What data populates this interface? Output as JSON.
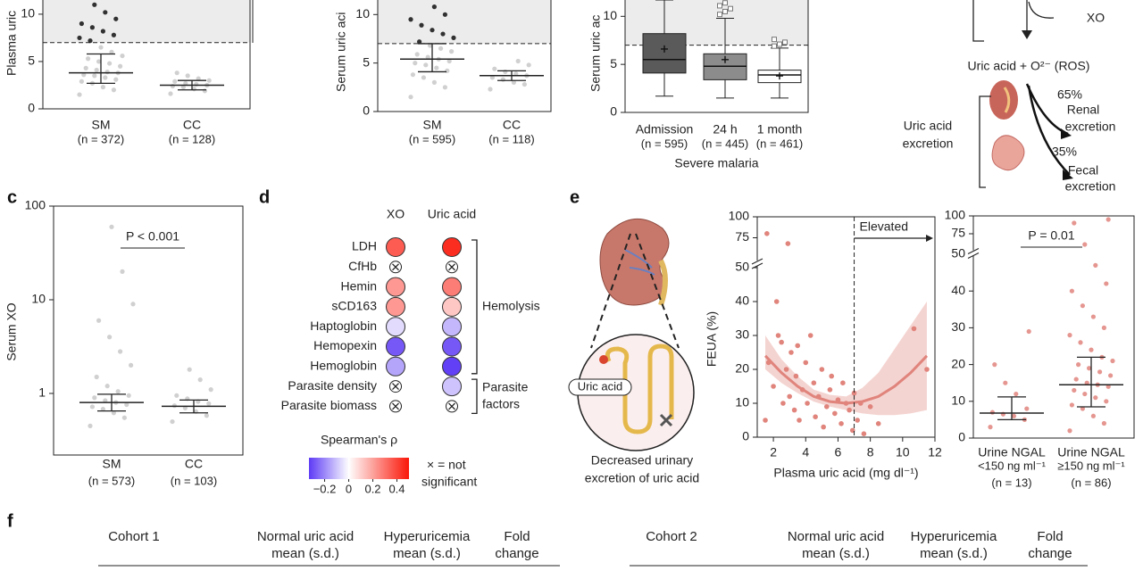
{
  "panel_labels": [
    "c",
    "d",
    "e",
    "f"
  ],
  "chart_data": [
    {
      "type": "strip",
      "ylabel": "Plasma uric",
      "ylim": [
        0,
        11.5
      ],
      "yticks": [
        0,
        5,
        10
      ],
      "threshold": 7,
      "color": "#c8c8c8",
      "threshold_color": "#111111",
      "categories": [
        "SM",
        "CC"
      ],
      "n_labels": [
        "(n = 372)",
        "(n = 128)"
      ],
      "median": [
        3.8,
        2.5
      ],
      "lower": [
        2.7,
        2.0
      ],
      "upper": [
        5.8,
        3.0
      ],
      "points": [
        [
          1.5,
          2,
          2.3,
          2.7,
          2.9,
          3.1,
          3.3,
          3.5,
          3.6,
          3.8,
          3.9,
          4.1,
          4.3,
          4.5,
          4.8,
          5,
          5.3,
          5.6,
          6,
          6.5,
          7.2,
          7.5,
          7.8,
          8.2,
          8.6,
          9,
          9.5,
          10.2,
          11
        ],
        [
          1.6,
          1.9,
          2.1,
          2.3,
          2.4,
          2.5,
          2.6,
          2.7,
          2.9,
          3,
          3.2,
          3.5,
          3.8
        ]
      ]
    },
    {
      "type": "strip",
      "ylabel": "Serum uric aci",
      "ylim": [
        0,
        11.5
      ],
      "yticks": [
        0,
        5,
        10
      ],
      "threshold": 7,
      "color": "#c8c8c8",
      "threshold_color": "#111111",
      "categories": [
        "SM",
        "CC"
      ],
      "n_labels": [
        "(n = 595)",
        "(n = 118)"
      ],
      "median": [
        5.4,
        3.7
      ],
      "lower": [
        4.1,
        3.2
      ],
      "upper": [
        7.0,
        4.2
      ],
      "points": [
        [
          1.5,
          2.5,
          3,
          3.5,
          3.8,
          4.2,
          4.5,
          4.8,
          5,
          5.2,
          5.4,
          5.6,
          5.9,
          6.2,
          6.5,
          6.8,
          7.2,
          7.6,
          8,
          8.4,
          8.9,
          9.5,
          10,
          10.8
        ],
        [
          2.3,
          2.8,
          3,
          3.3,
          3.5,
          3.7,
          3.9,
          4.1,
          4.4,
          4.8,
          5.2
        ]
      ]
    },
    {
      "type": "box",
      "ylabel": "Serum uric ac",
      "xlabel": "Severe malaria",
      "ylim": [
        0,
        11.7
      ],
      "yticks": [
        0,
        5,
        10
      ],
      "threshold": 7,
      "colors": [
        "#5a5a5a",
        "#8c8c8c",
        "#ffffff"
      ],
      "categories": [
        "Admission",
        "24 h",
        "1 month"
      ],
      "n_labels": [
        "(n = 595)",
        "(n = 445)",
        "(n = 461)"
      ],
      "whisker_low": [
        1.7,
        1.5,
        1.5
      ],
      "q1": [
        4.1,
        3.4,
        3.1
      ],
      "median": [
        5.5,
        4.8,
        3.9
      ],
      "q3": [
        8.2,
        6.1,
        4.4
      ],
      "whisker_high": [
        11.7,
        9.8,
        6.7
      ],
      "mean": [
        6.6,
        5.5,
        3.8
      ],
      "outliers": [
        [],
        [
          10.2,
          10.5,
          10.8,
          11.1,
          11.4
        ],
        [
          6.9,
          7.1,
          7.3,
          7.6
        ]
      ]
    },
    {
      "type": "strip",
      "log": true,
      "ylabel": "Serum XO",
      "annotation": "P < 0.001",
      "ylim": [
        0.22,
        100
      ],
      "yticks": [
        1,
        10,
        100
      ],
      "color": "#c8c8c8",
      "categories": [
        "SM",
        "CC"
      ],
      "n_labels": [
        "(n = 573)",
        "(n = 103)"
      ],
      "median": [
        0.8,
        0.73
      ],
      "lower": [
        0.65,
        0.62
      ],
      "upper": [
        0.98,
        0.85
      ],
      "points": [
        [
          0.45,
          0.55,
          0.62,
          0.68,
          0.72,
          0.76,
          0.8,
          0.84,
          0.9,
          0.95,
          1.05,
          1.2,
          1.5,
          2,
          2.8,
          4,
          6,
          9,
          20,
          60
        ],
        [
          0.5,
          0.58,
          0.64,
          0.7,
          0.74,
          0.78,
          0.82,
          0.88,
          0.95,
          1.1,
          1.4,
          1.8
        ]
      ]
    },
    {
      "type": "dotmatrix",
      "columns": [
        "XO",
        "Uric acid"
      ],
      "rows": [
        "LDH",
        "CfHb",
        "Hemin",
        "sCD163",
        "Haptoglobin",
        "Hemopexin",
        "Hemoglobin",
        "Parasite density",
        "Parasite biomass"
      ],
      "values": [
        [
          0.35,
          0.45
        ],
        [
          null,
          null
        ],
        [
          0.22,
          0.28
        ],
        [
          0.22,
          0.12
        ],
        [
          -0.06,
          -0.12
        ],
        [
          -0.28,
          -0.28
        ],
        [
          -0.15,
          -0.32
        ],
        [
          null,
          -0.1
        ],
        [
          null,
          null
        ]
      ],
      "groups": [
        [
          "Hemolysis"
        ],
        [
          "Parasite",
          "factors"
        ]
      ],
      "colorbar_label": "Spearman's ρ",
      "clim": [
        -0.33,
        0.5
      ],
      "cticks": [
        {
          "value": -0.2,
          "label": "−0.2"
        },
        0,
        0.2,
        0.4
      ],
      "note": [
        "× = not",
        "significant"
      ]
    },
    {
      "type": "scatter",
      "ylabel": "FEUA (%)",
      "xlabel": "Plasma uric acid (mg dl⁻¹)",
      "color": "#e0847c",
      "xlim": [
        1,
        12
      ],
      "xticks": [
        2,
        4,
        6,
        8,
        10,
        12
      ],
      "ylim": [
        0,
        100
      ],
      "yticks": [
        0,
        10,
        20,
        30,
        40,
        50,
        75,
        100
      ],
      "y_break": 50,
      "threshold_x": 7,
      "threshold_label": "Elevated",
      "x": [
        1.6,
        2.9,
        1.5,
        1.7,
        2,
        2.2,
        2.3,
        2.5,
        2.6,
        2.8,
        3,
        3.1,
        3.3,
        3.4,
        3.5,
        3.6,
        3.8,
        4,
        4.1,
        4.3,
        4.5,
        4.6,
        4.8,
        5,
        5.1,
        5.3,
        5.5,
        5.6,
        5.8,
        6,
        6.2,
        6.3,
        6.5,
        6.7,
        6.9,
        7,
        7.2,
        7.4,
        7.6,
        8,
        8.5,
        10.7,
        11.5
      ],
      "y": [
        80,
        68,
        5,
        22,
        15,
        40,
        30,
        28,
        10,
        20,
        12,
        25,
        8,
        18,
        27,
        5,
        14,
        22,
        10,
        30,
        16,
        6,
        12,
        20,
        3,
        9,
        14,
        18,
        7,
        11,
        4,
        16,
        10,
        8,
        2,
        13,
        5,
        10,
        1,
        9,
        4,
        32,
        20
      ],
      "fit_x": [
        1.5,
        2.5,
        3.5,
        4.5,
        5.5,
        6.5,
        7.5,
        8.5,
        9.5,
        10.5,
        11.5
      ],
      "fit": [
        24,
        19,
        15,
        12,
        10.5,
        10,
        10.5,
        12,
        15,
        19,
        24
      ],
      "ci_lower": [
        20,
        16,
        13,
        10.5,
        9,
        8,
        7,
        6.5,
        6.5,
        7,
        8
      ],
      "ci_upper": [
        30,
        23,
        18,
        14,
        12.5,
        12,
        14.5,
        19,
        26,
        33,
        40
      ]
    },
    {
      "type": "strip",
      "annotation": "P = 0.01",
      "color": "#e0847c",
      "ylim": [
        0,
        100
      ],
      "yticks": [
        0,
        10,
        20,
        30,
        40,
        50,
        75,
        100
      ],
      "y_break": 50,
      "categories": [
        "Urine NGAL",
        "Urine NGAL"
      ],
      "sublabels": [
        "<150 ng ml⁻¹",
        "≥150 ng ml⁻¹"
      ],
      "n_labels": [
        "(n = 13)",
        "(n = 86)"
      ],
      "median": [
        6.8,
        14.5
      ],
      "lower": [
        5,
        8.5
      ],
      "upper": [
        11.2,
        22
      ],
      "points": [
        [
          3,
          5,
          6,
          6.5,
          7,
          8,
          12,
          15,
          20,
          29
        ],
        [
          2,
          4,
          6,
          8,
          9,
          10,
          11,
          12,
          13,
          14,
          14.5,
          15,
          16,
          17,
          18,
          19,
          20,
          21,
          22,
          24,
          26,
          28,
          30,
          33,
          36,
          40,
          42,
          47,
          60,
          90,
          95
        ]
      ]
    }
  ],
  "pathway": {
    "enzyme": "XO",
    "product": "Uric acid + O²⁻ (ROS)",
    "excretion": [
      "Uric acid",
      "excretion"
    ],
    "renal_share": "65%",
    "renal": [
      "Renal",
      "excretion"
    ],
    "fecal_share": "35%",
    "fecal": [
      "Fecal",
      "excretion"
    ]
  },
  "kidney": {
    "marker": "Uric acid",
    "caption": [
      "Decreased urinary",
      "excretion of uric acid"
    ]
  },
  "table": {
    "cohorts": [
      {
        "title": "Cohort 1",
        "columns": [
          [
            "Normal uric acid",
            "mean (s.d.)"
          ],
          [
            "Hyperuricemia",
            "mean (s.d.)"
          ],
          [
            "Fold",
            "change"
          ]
        ]
      },
      {
        "title": "Cohort 2",
        "columns": [
          [
            "Normal uric acid",
            "mean (s.d.)"
          ],
          [
            "Hyperuricemia",
            "mean (s.d.)"
          ],
          [
            "Fold",
            "change"
          ]
        ]
      }
    ]
  }
}
